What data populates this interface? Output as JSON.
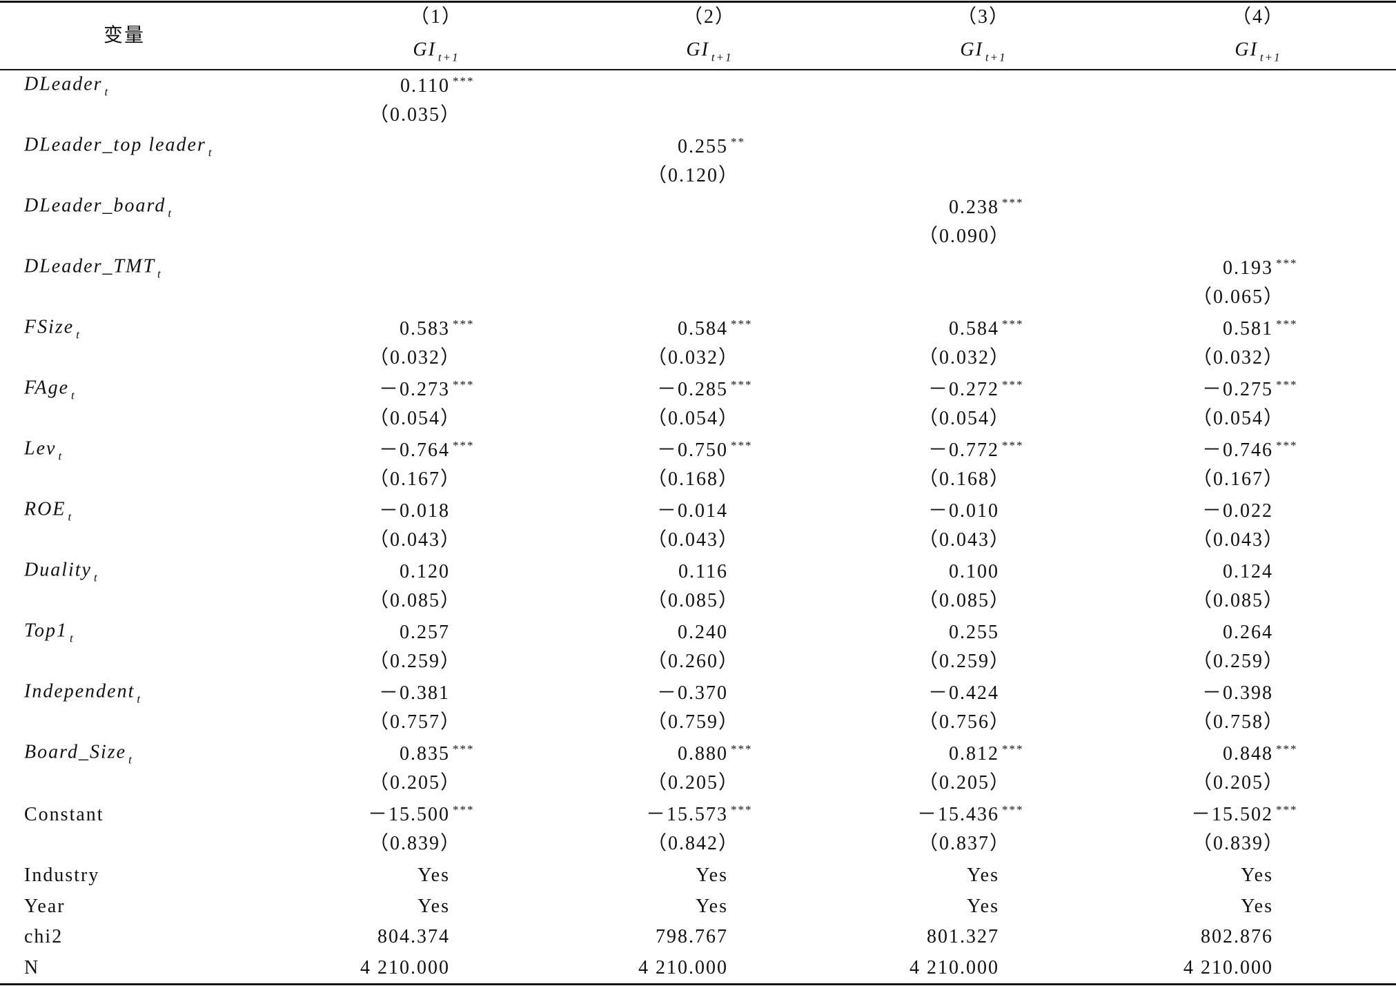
{
  "table": {
    "header": {
      "var": "变量",
      "cols": [
        {
          "num": "（1）",
          "dep": "GI",
          "sub": "t+1"
        },
        {
          "num": "（2）",
          "dep": "GI",
          "sub": "t+1"
        },
        {
          "num": "（3）",
          "dep": "GI",
          "sub": "t+1"
        },
        {
          "num": "（4）",
          "dep": "GI",
          "sub": "t+1"
        }
      ]
    },
    "rows": [
      {
        "name": "DLeader",
        "sub": "t",
        "cells": [
          {
            "coef": "0.110",
            "stars": "***",
            "se": "（0.035）"
          },
          null,
          null,
          null
        ]
      },
      {
        "name": "DLeader_top leader",
        "sub": "t",
        "cells": [
          null,
          {
            "coef": "0.255",
            "stars": "**",
            "se": "（0.120）"
          },
          null,
          null
        ]
      },
      {
        "name": "DLeader_board",
        "sub": "t",
        "cells": [
          null,
          null,
          {
            "coef": "0.238",
            "stars": "***",
            "se": "（0.090）"
          },
          null
        ]
      },
      {
        "name": "DLeader_TMT",
        "sub": "t",
        "cells": [
          null,
          null,
          null,
          {
            "coef": "0.193",
            "stars": "***",
            "se": "（0.065）"
          }
        ]
      },
      {
        "name": "FSize",
        "sub": "t",
        "cells": [
          {
            "coef": "0.583",
            "stars": "***",
            "se": "（0.032）"
          },
          {
            "coef": "0.584",
            "stars": "***",
            "se": "（0.032）"
          },
          {
            "coef": "0.584",
            "stars": "***",
            "se": "（0.032）"
          },
          {
            "coef": "0.581",
            "stars": "***",
            "se": "（0.032）"
          }
        ]
      },
      {
        "name": "FAge",
        "sub": "t",
        "cells": [
          {
            "coef": "－0.273",
            "stars": "***",
            "se": "（0.054）"
          },
          {
            "coef": "－0.285",
            "stars": "***",
            "se": "（0.054）"
          },
          {
            "coef": "－0.272",
            "stars": "***",
            "se": "（0.054）"
          },
          {
            "coef": "－0.275",
            "stars": "***",
            "se": "（0.054）"
          }
        ]
      },
      {
        "name": "Lev",
        "sub": "t",
        "cells": [
          {
            "coef": "－0.764",
            "stars": "***",
            "se": "（0.167）"
          },
          {
            "coef": "－0.750",
            "stars": "***",
            "se": "（0.168）"
          },
          {
            "coef": "－0.772",
            "stars": "***",
            "se": "（0.168）"
          },
          {
            "coef": "－0.746",
            "stars": "***",
            "se": "（0.167）"
          }
        ]
      },
      {
        "name": "ROE",
        "sub": "t",
        "cells": [
          {
            "coef": "－0.018",
            "se": "（0.043）"
          },
          {
            "coef": "－0.014",
            "se": "（0.043）"
          },
          {
            "coef": "－0.010",
            "se": "（0.043）"
          },
          {
            "coef": "－0.022",
            "se": "（0.043）"
          }
        ]
      },
      {
        "name": "Duality",
        "sub": "t",
        "cells": [
          {
            "coef": "0.120",
            "se": "（0.085）"
          },
          {
            "coef": "0.116",
            "se": "（0.085）"
          },
          {
            "coef": "0.100",
            "se": "（0.085）"
          },
          {
            "coef": "0.124",
            "se": "（0.085）"
          }
        ]
      },
      {
        "name": "Top1",
        "sub": "t",
        "cells": [
          {
            "coef": "0.257",
            "se": "（0.259）"
          },
          {
            "coef": "0.240",
            "se": "（0.260）"
          },
          {
            "coef": "0.255",
            "se": "（0.259）"
          },
          {
            "coef": "0.264",
            "se": "（0.259）"
          }
        ]
      },
      {
        "name": "Independent",
        "sub": "t",
        "cells": [
          {
            "coef": "－0.381",
            "se": "（0.757）"
          },
          {
            "coef": "－0.370",
            "se": "（0.759）"
          },
          {
            "coef": "－0.424",
            "se": "（0.756）"
          },
          {
            "coef": "－0.398",
            "se": "（0.758）"
          }
        ]
      },
      {
        "name": "Board_Size",
        "sub": "t",
        "cells": [
          {
            "coef": "0.835",
            "stars": "***",
            "se": "（0.205）"
          },
          {
            "coef": "0.880",
            "stars": "***",
            "se": "（0.205）"
          },
          {
            "coef": "0.812",
            "stars": "***",
            "se": "（0.205）"
          },
          {
            "coef": "0.848",
            "stars": "***",
            "se": "（0.205）"
          }
        ]
      },
      {
        "name": "Constant",
        "cells": [
          {
            "coef": "－15.500",
            "stars": "***",
            "se": "（0.839）"
          },
          {
            "coef": "－15.573",
            "stars": "***",
            "se": "（0.842）"
          },
          {
            "coef": "－15.436",
            "stars": "***",
            "se": "（0.837）"
          },
          {
            "coef": "－15.502",
            "stars": "***",
            "se": "（0.839）"
          }
        ]
      },
      {
        "name": "Industry",
        "cells": [
          "Yes",
          "Yes",
          "Yes",
          "Yes"
        ]
      },
      {
        "name": "Year",
        "cells": [
          "Yes",
          "Yes",
          "Yes",
          "Yes"
        ]
      },
      {
        "name": "chi2",
        "cells": [
          "804.374",
          "798.767",
          "801.327",
          "802.876"
        ]
      },
      {
        "name": "N",
        "cells": [
          "4 210.000",
          "4 210.000",
          "4 210.000",
          "4 210.000"
        ]
      }
    ]
  }
}
